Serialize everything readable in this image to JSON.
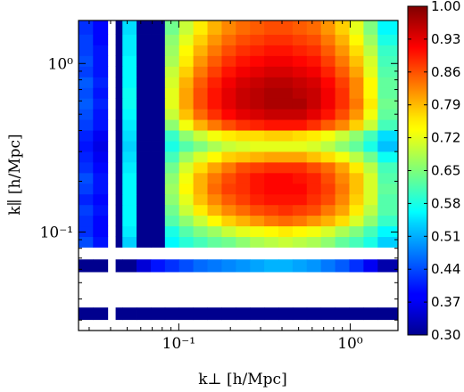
{
  "chart_data": {
    "type": "heatmap",
    "title": "",
    "xlabel": "k⊥ [h/Mpc]",
    "ylabel": "k∥ [h/Mpc]",
    "x_scale": "log",
    "y_scale": "log",
    "xlim": [
      0.026,
      1.9
    ],
    "ylim": [
      0.026,
      1.8
    ],
    "x_tick_labels": [
      {
        "value": 0.1,
        "label": "10⁻¹"
      },
      {
        "value": 1,
        "label": "10⁰"
      }
    ],
    "y_tick_labels": [
      {
        "value": 0.1,
        "label": "10⁻¹"
      },
      {
        "value": 1,
        "label": "10⁰"
      }
    ],
    "colorbar": {
      "min": 0.3,
      "max": 1.0,
      "ticks": [
        "0.30",
        "0.37",
        "0.44",
        "0.51",
        "0.58",
        "0.65",
        "0.72",
        "0.79",
        "0.86",
        "0.93",
        "1.00"
      ]
    },
    "x_bin_edges": [
      0.026,
      0.0316,
      0.0385,
      0.0428,
      0.0469,
      0.0567,
      0.0686,
      0.083,
      0.1004,
      0.1215,
      0.147,
      0.1779,
      0.2152,
      0.2604,
      0.3151,
      0.3812,
      0.4612,
      0.558,
      0.6752,
      0.8169,
      0.9884,
      1.196,
      1.447,
      1.9
    ],
    "y_bin_edges": [
      0.026,
      0.0302,
      0.0356,
      0.0418,
      0.0493,
      0.058,
      0.0687,
      0.0812,
      0.0938,
      0.1085,
      0.1255,
      0.1451,
      0.1679,
      0.1942,
      0.2246,
      0.2598,
      0.3004,
      0.3475,
      0.4019,
      0.4649,
      0.5377,
      0.622,
      0.7194,
      0.8321,
      0.9625,
      1.1133,
      1.2877,
      1.4894,
      1.8
    ],
    "values": [
      [
        null,
        null,
        null,
        null,
        null,
        null,
        null,
        null,
        null,
        null,
        null,
        null,
        null,
        null,
        null,
        null,
        null,
        null,
        null,
        null,
        null,
        null,
        null
      ],
      [
        0.31,
        0.31,
        null,
        0.31,
        0.31,
        0.31,
        0.31,
        0.31,
        0.31,
        0.31,
        0.31,
        0.31,
        0.31,
        0.31,
        0.31,
        0.31,
        0.31,
        0.31,
        0.31,
        0.31,
        0.31,
        0.31,
        0.31
      ],
      [
        null,
        null,
        null,
        null,
        null,
        null,
        null,
        null,
        null,
        null,
        null,
        null,
        null,
        null,
        null,
        null,
        null,
        null,
        null,
        null,
        null,
        null,
        null
      ],
      [
        null,
        null,
        null,
        null,
        null,
        null,
        null,
        null,
        null,
        null,
        null,
        null,
        null,
        null,
        null,
        null,
        null,
        null,
        null,
        null,
        null,
        null,
        null
      ],
      [
        null,
        null,
        null,
        null,
        null,
        null,
        null,
        null,
        null,
        null,
        null,
        null,
        null,
        null,
        null,
        null,
        null,
        null,
        null,
        null,
        null,
        null,
        null
      ],
      [
        0.31,
        0.31,
        null,
        0.31,
        0.31,
        0.36,
        0.4,
        0.42,
        0.44,
        0.46,
        0.47,
        0.48,
        0.49,
        0.5,
        0.51,
        0.51,
        0.5,
        0.49,
        0.47,
        0.45,
        0.42,
        0.38,
        0.33
      ],
      [
        null,
        null,
        null,
        null,
        null,
        null,
        null,
        null,
        null,
        null,
        null,
        null,
        null,
        null,
        null,
        null,
        null,
        null,
        null,
        null,
        null,
        null,
        null
      ],
      [
        0.44,
        0.4,
        null,
        0.31,
        0.53,
        0.31,
        0.31,
        0.56,
        0.59,
        0.61,
        0.63,
        0.64,
        0.66,
        0.68,
        0.69,
        0.7,
        0.69,
        0.68,
        0.66,
        0.63,
        0.61,
        0.58,
        0.53
      ],
      [
        0.42,
        0.39,
        null,
        0.31,
        0.55,
        0.31,
        0.31,
        0.58,
        0.62,
        0.65,
        0.67,
        0.7,
        0.72,
        0.73,
        0.74,
        0.75,
        0.74,
        0.73,
        0.71,
        0.68,
        0.65,
        0.61,
        0.56
      ],
      [
        0.42,
        0.39,
        null,
        0.31,
        0.56,
        0.31,
        0.31,
        0.62,
        0.66,
        0.7,
        0.74,
        0.77,
        0.79,
        0.81,
        0.83,
        0.84,
        0.83,
        0.81,
        0.79,
        0.76,
        0.71,
        0.66,
        0.6
      ],
      [
        0.43,
        0.4,
        null,
        0.31,
        0.56,
        0.31,
        0.31,
        0.64,
        0.7,
        0.75,
        0.79,
        0.82,
        0.84,
        0.86,
        0.87,
        0.88,
        0.87,
        0.86,
        0.83,
        0.8,
        0.75,
        0.69,
        0.62
      ],
      [
        0.41,
        0.39,
        null,
        0.31,
        0.56,
        0.31,
        0.31,
        0.66,
        0.72,
        0.78,
        0.82,
        0.85,
        0.87,
        0.89,
        0.9,
        0.9,
        0.9,
        0.88,
        0.86,
        0.82,
        0.77,
        0.71,
        0.62
      ],
      [
        0.43,
        0.4,
        null,
        0.31,
        0.56,
        0.31,
        0.31,
        0.67,
        0.74,
        0.79,
        0.84,
        0.87,
        0.88,
        0.9,
        0.91,
        0.91,
        0.91,
        0.89,
        0.87,
        0.83,
        0.78,
        0.71,
        0.63
      ],
      [
        0.44,
        0.4,
        null,
        0.31,
        0.56,
        0.31,
        0.31,
        0.66,
        0.73,
        0.79,
        0.83,
        0.86,
        0.88,
        0.9,
        0.91,
        0.91,
        0.9,
        0.89,
        0.86,
        0.82,
        0.78,
        0.71,
        0.62
      ],
      [
        0.42,
        0.39,
        null,
        0.31,
        0.55,
        0.31,
        0.31,
        0.64,
        0.71,
        0.76,
        0.8,
        0.83,
        0.86,
        0.87,
        0.88,
        0.88,
        0.88,
        0.86,
        0.84,
        0.8,
        0.75,
        0.69,
        0.61
      ],
      [
        0.41,
        0.38,
        null,
        0.31,
        0.54,
        0.31,
        0.31,
        0.61,
        0.67,
        0.71,
        0.74,
        0.77,
        0.78,
        0.79,
        0.8,
        0.8,
        0.8,
        0.78,
        0.76,
        0.73,
        0.69,
        0.64,
        0.57
      ],
      [
        0.4,
        0.37,
        null,
        0.31,
        0.53,
        0.31,
        0.31,
        0.58,
        0.62,
        0.65,
        0.68,
        0.7,
        0.71,
        0.72,
        0.72,
        0.72,
        0.72,
        0.71,
        0.69,
        0.66,
        0.63,
        0.58,
        0.52
      ],
      [
        0.41,
        0.38,
        null,
        0.31,
        0.54,
        0.31,
        0.31,
        0.6,
        0.66,
        0.7,
        0.73,
        0.75,
        0.76,
        0.76,
        0.77,
        0.77,
        0.76,
        0.75,
        0.73,
        0.7,
        0.66,
        0.61,
        0.54
      ],
      [
        0.43,
        0.4,
        null,
        0.31,
        0.55,
        0.31,
        0.31,
        0.66,
        0.73,
        0.79,
        0.83,
        0.86,
        0.88,
        0.89,
        0.9,
        0.9,
        0.9,
        0.88,
        0.85,
        0.82,
        0.77,
        0.7,
        0.61
      ],
      [
        0.44,
        0.4,
        null,
        0.31,
        0.56,
        0.31,
        0.31,
        0.7,
        0.78,
        0.84,
        0.88,
        0.91,
        0.93,
        0.94,
        0.95,
        0.95,
        0.95,
        0.93,
        0.9,
        0.86,
        0.81,
        0.73,
        0.63
      ],
      [
        0.45,
        0.41,
        null,
        0.31,
        0.57,
        0.31,
        0.31,
        0.72,
        0.8,
        0.86,
        0.9,
        0.93,
        0.95,
        0.96,
        0.97,
        0.97,
        0.97,
        0.95,
        0.92,
        0.88,
        0.83,
        0.75,
        0.64
      ],
      [
        0.44,
        0.4,
        null,
        0.31,
        0.57,
        0.31,
        0.31,
        0.72,
        0.8,
        0.86,
        0.9,
        0.93,
        0.95,
        0.96,
        0.97,
        0.97,
        0.96,
        0.95,
        0.92,
        0.88,
        0.82,
        0.74,
        0.63
      ],
      [
        0.45,
        0.41,
        null,
        0.31,
        0.56,
        0.31,
        0.31,
        0.71,
        0.79,
        0.85,
        0.89,
        0.92,
        0.94,
        0.95,
        0.96,
        0.96,
        0.95,
        0.94,
        0.91,
        0.87,
        0.82,
        0.74,
        0.63
      ],
      [
        0.43,
        0.4,
        null,
        0.31,
        0.56,
        0.31,
        0.31,
        0.7,
        0.77,
        0.83,
        0.87,
        0.9,
        0.92,
        0.93,
        0.94,
        0.94,
        0.93,
        0.92,
        0.89,
        0.85,
        0.8,
        0.72,
        0.62
      ],
      [
        0.44,
        0.4,
        null,
        0.31,
        0.56,
        0.31,
        0.31,
        0.68,
        0.75,
        0.81,
        0.85,
        0.88,
        0.9,
        0.91,
        0.92,
        0.92,
        0.91,
        0.9,
        0.87,
        0.83,
        0.78,
        0.71,
        0.61
      ],
      [
        0.43,
        0.4,
        null,
        0.31,
        0.55,
        0.31,
        0.31,
        0.67,
        0.74,
        0.79,
        0.83,
        0.86,
        0.88,
        0.89,
        0.9,
        0.9,
        0.89,
        0.88,
        0.85,
        0.81,
        0.76,
        0.69,
        0.6
      ],
      [
        0.43,
        0.39,
        null,
        0.31,
        0.55,
        0.31,
        0.31,
        0.66,
        0.72,
        0.77,
        0.81,
        0.84,
        0.86,
        0.87,
        0.88,
        0.88,
        0.87,
        0.86,
        0.83,
        0.79,
        0.74,
        0.67,
        0.58
      ],
      [
        0.42,
        0.39,
        null,
        0.31,
        0.54,
        0.31,
        0.31,
        0.64,
        0.7,
        0.75,
        0.79,
        0.82,
        0.84,
        0.85,
        0.86,
        0.86,
        0.85,
        0.84,
        0.81,
        0.77,
        0.72,
        0.65,
        0.56
      ]
    ]
  }
}
